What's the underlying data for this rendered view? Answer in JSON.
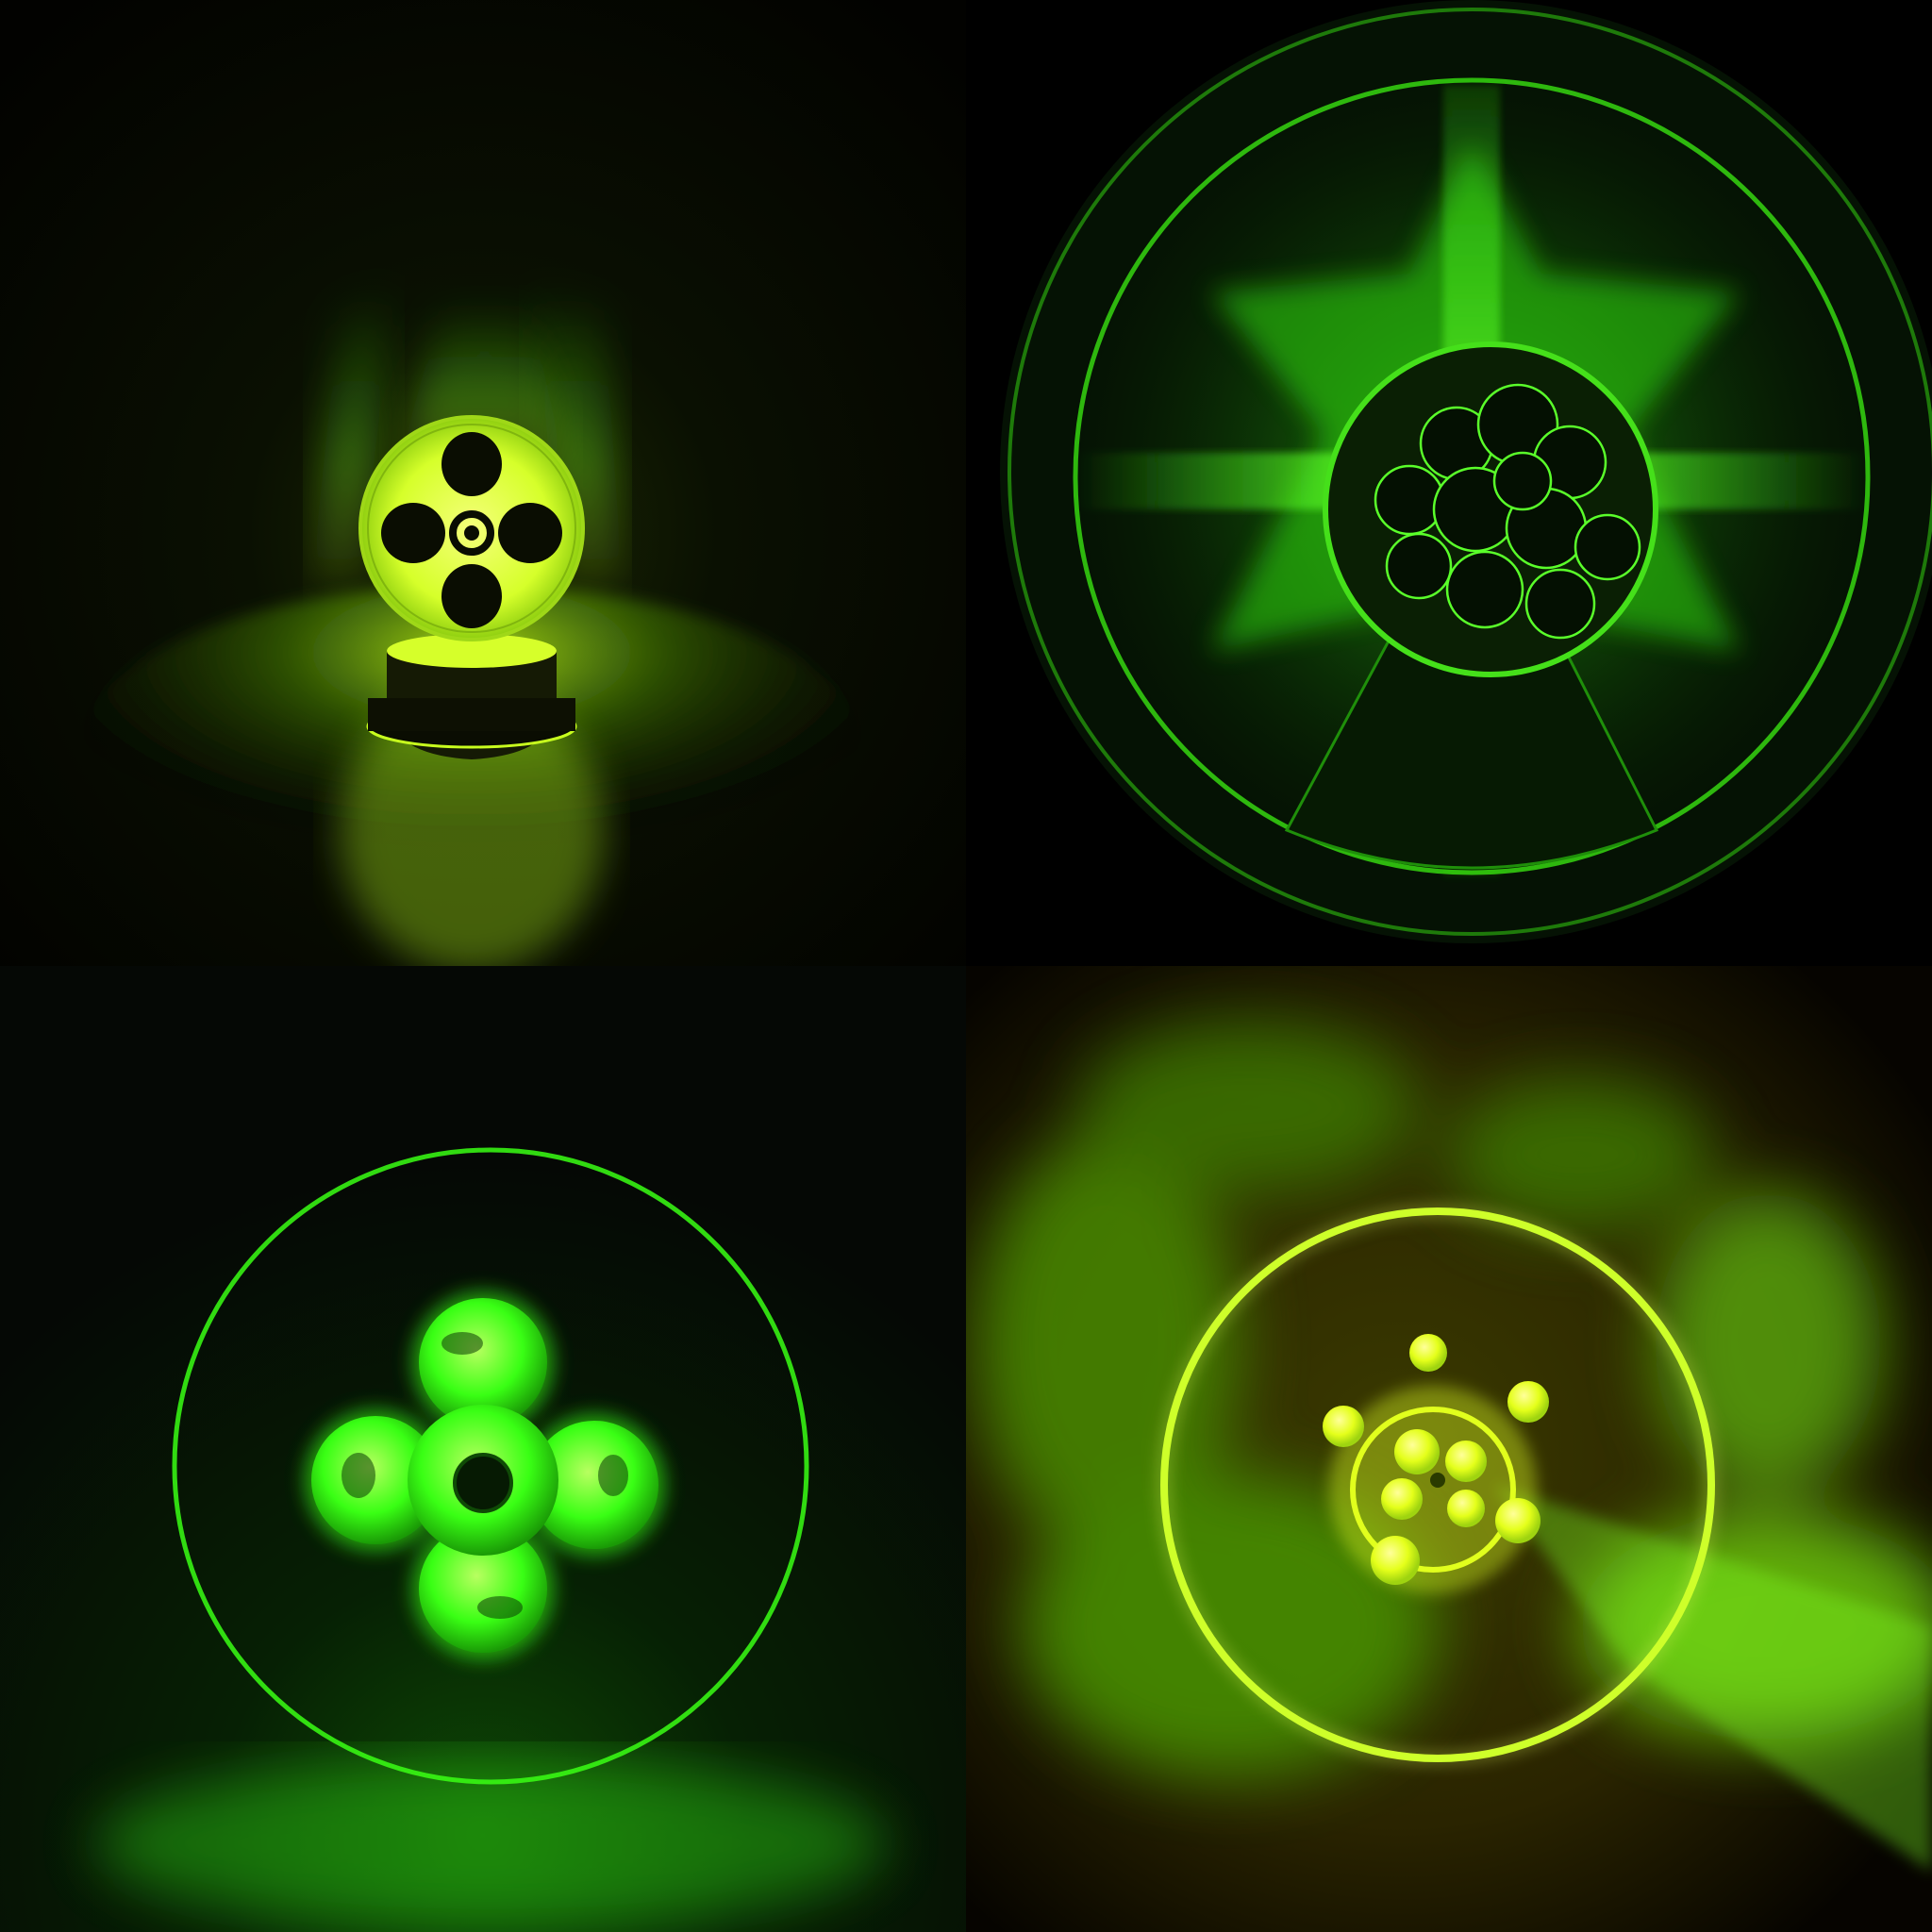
{
  "image": {
    "layout": "2x2 grid",
    "palette": {
      "background": "#050505",
      "glow_green": "#39ff14",
      "glow_yellow_green": "#c8ff1e",
      "deep_green": "#0f3a05",
      "amber_haze": "#5a4a00"
    }
  },
  "panels": [
    {
      "name": "lamp-with-four-lobed-disc",
      "glow_color": "#c8ff1e"
    },
    {
      "name": "disc-with-sphere-cluster",
      "glow_color": "#39ff14"
    },
    {
      "name": "ring-with-four-lobes",
      "glow_color": "#39ff14"
    },
    {
      "name": "ring-with-atom-cluster",
      "glow_color": "#d4ff1a"
    }
  ]
}
